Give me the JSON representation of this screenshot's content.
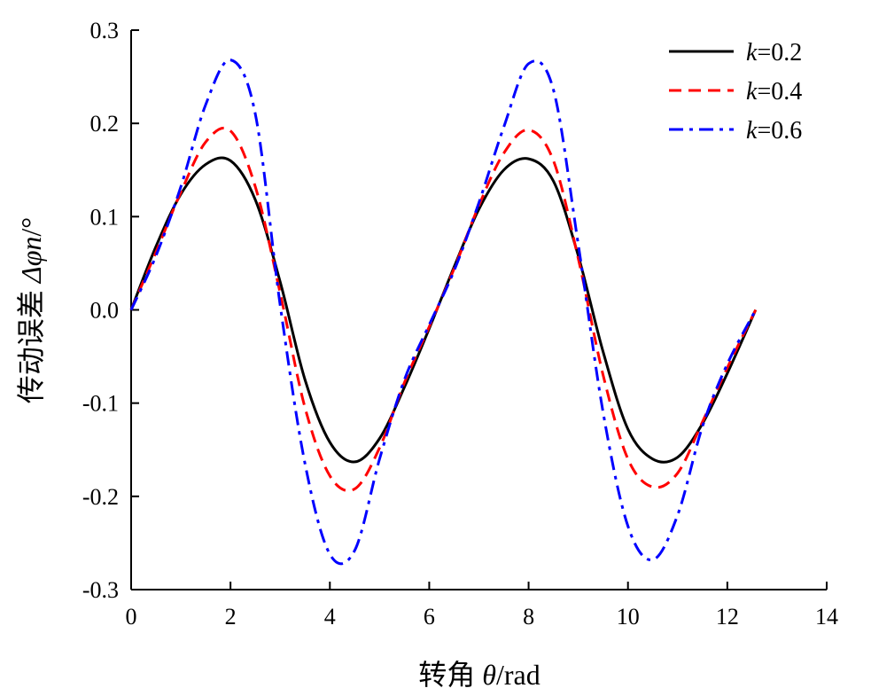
{
  "chart_data": {
    "type": "line",
    "xlabel": {
      "prefix": "转角 ",
      "symbol": "θ",
      "suffix": "/rad"
    },
    "ylabel": {
      "prefix": "传动误差 ",
      "symbol": "Δφn",
      "suffix": "/°"
    },
    "xlim": [
      0,
      14
    ],
    "ylim": [
      -0.3,
      0.3
    ],
    "xticks": [
      "0",
      "2",
      "4",
      "6",
      "8",
      "10",
      "12",
      "14"
    ],
    "yticks": [
      "0.3",
      "0.2",
      "0.1",
      "0.0",
      "-0.1",
      "-0.2",
      "-0.3"
    ],
    "grid": false,
    "legend_position": "top-right",
    "x": [
      0,
      0.5,
      1.0,
      1.5,
      2.0,
      2.5,
      3.0,
      3.5,
      4.0,
      4.5,
      5.0,
      5.5,
      6.0,
      6.5,
      7.0,
      7.5,
      8.0,
      8.5,
      9.0,
      9.5,
      10.0,
      10.5,
      11.0,
      11.5,
      12.0,
      12.57
    ],
    "series": [
      {
        "name": "k=0.2",
        "label_var": "k",
        "label_val": "=0.2",
        "color": "#000000",
        "dash": "solid",
        "values": [
          0.0,
          0.068,
          0.124,
          0.156,
          0.16,
          0.118,
          0.03,
          -0.075,
          -0.142,
          -0.163,
          -0.138,
          -0.083,
          -0.02,
          0.046,
          0.108,
          0.15,
          0.162,
          0.138,
          0.058,
          -0.045,
          -0.128,
          -0.16,
          -0.158,
          -0.122,
          -0.068,
          0.0
        ]
      },
      {
        "name": "k=0.4",
        "label_var": "k",
        "label_val": "=0.4",
        "color": "#ff0000",
        "dash": "dashed",
        "values": [
          0.0,
          0.062,
          0.126,
          0.18,
          0.192,
          0.132,
          0.018,
          -0.105,
          -0.178,
          -0.192,
          -0.148,
          -0.078,
          -0.018,
          0.044,
          0.112,
          0.168,
          0.193,
          0.16,
          0.055,
          -0.07,
          -0.16,
          -0.19,
          -0.175,
          -0.12,
          -0.062,
          0.0
        ]
      },
      {
        "name": "k=0.6",
        "label_var": "k",
        "label_val": "=0.6",
        "color": "#0000ff",
        "dash": "dashdot",
        "values": [
          0.0,
          0.058,
          0.132,
          0.22,
          0.268,
          0.21,
          0.005,
          -0.165,
          -0.262,
          -0.258,
          -0.16,
          -0.075,
          -0.016,
          0.042,
          0.115,
          0.196,
          0.264,
          0.236,
          0.07,
          -0.11,
          -0.232,
          -0.268,
          -0.22,
          -0.125,
          -0.058,
          0.0
        ]
      }
    ]
  }
}
